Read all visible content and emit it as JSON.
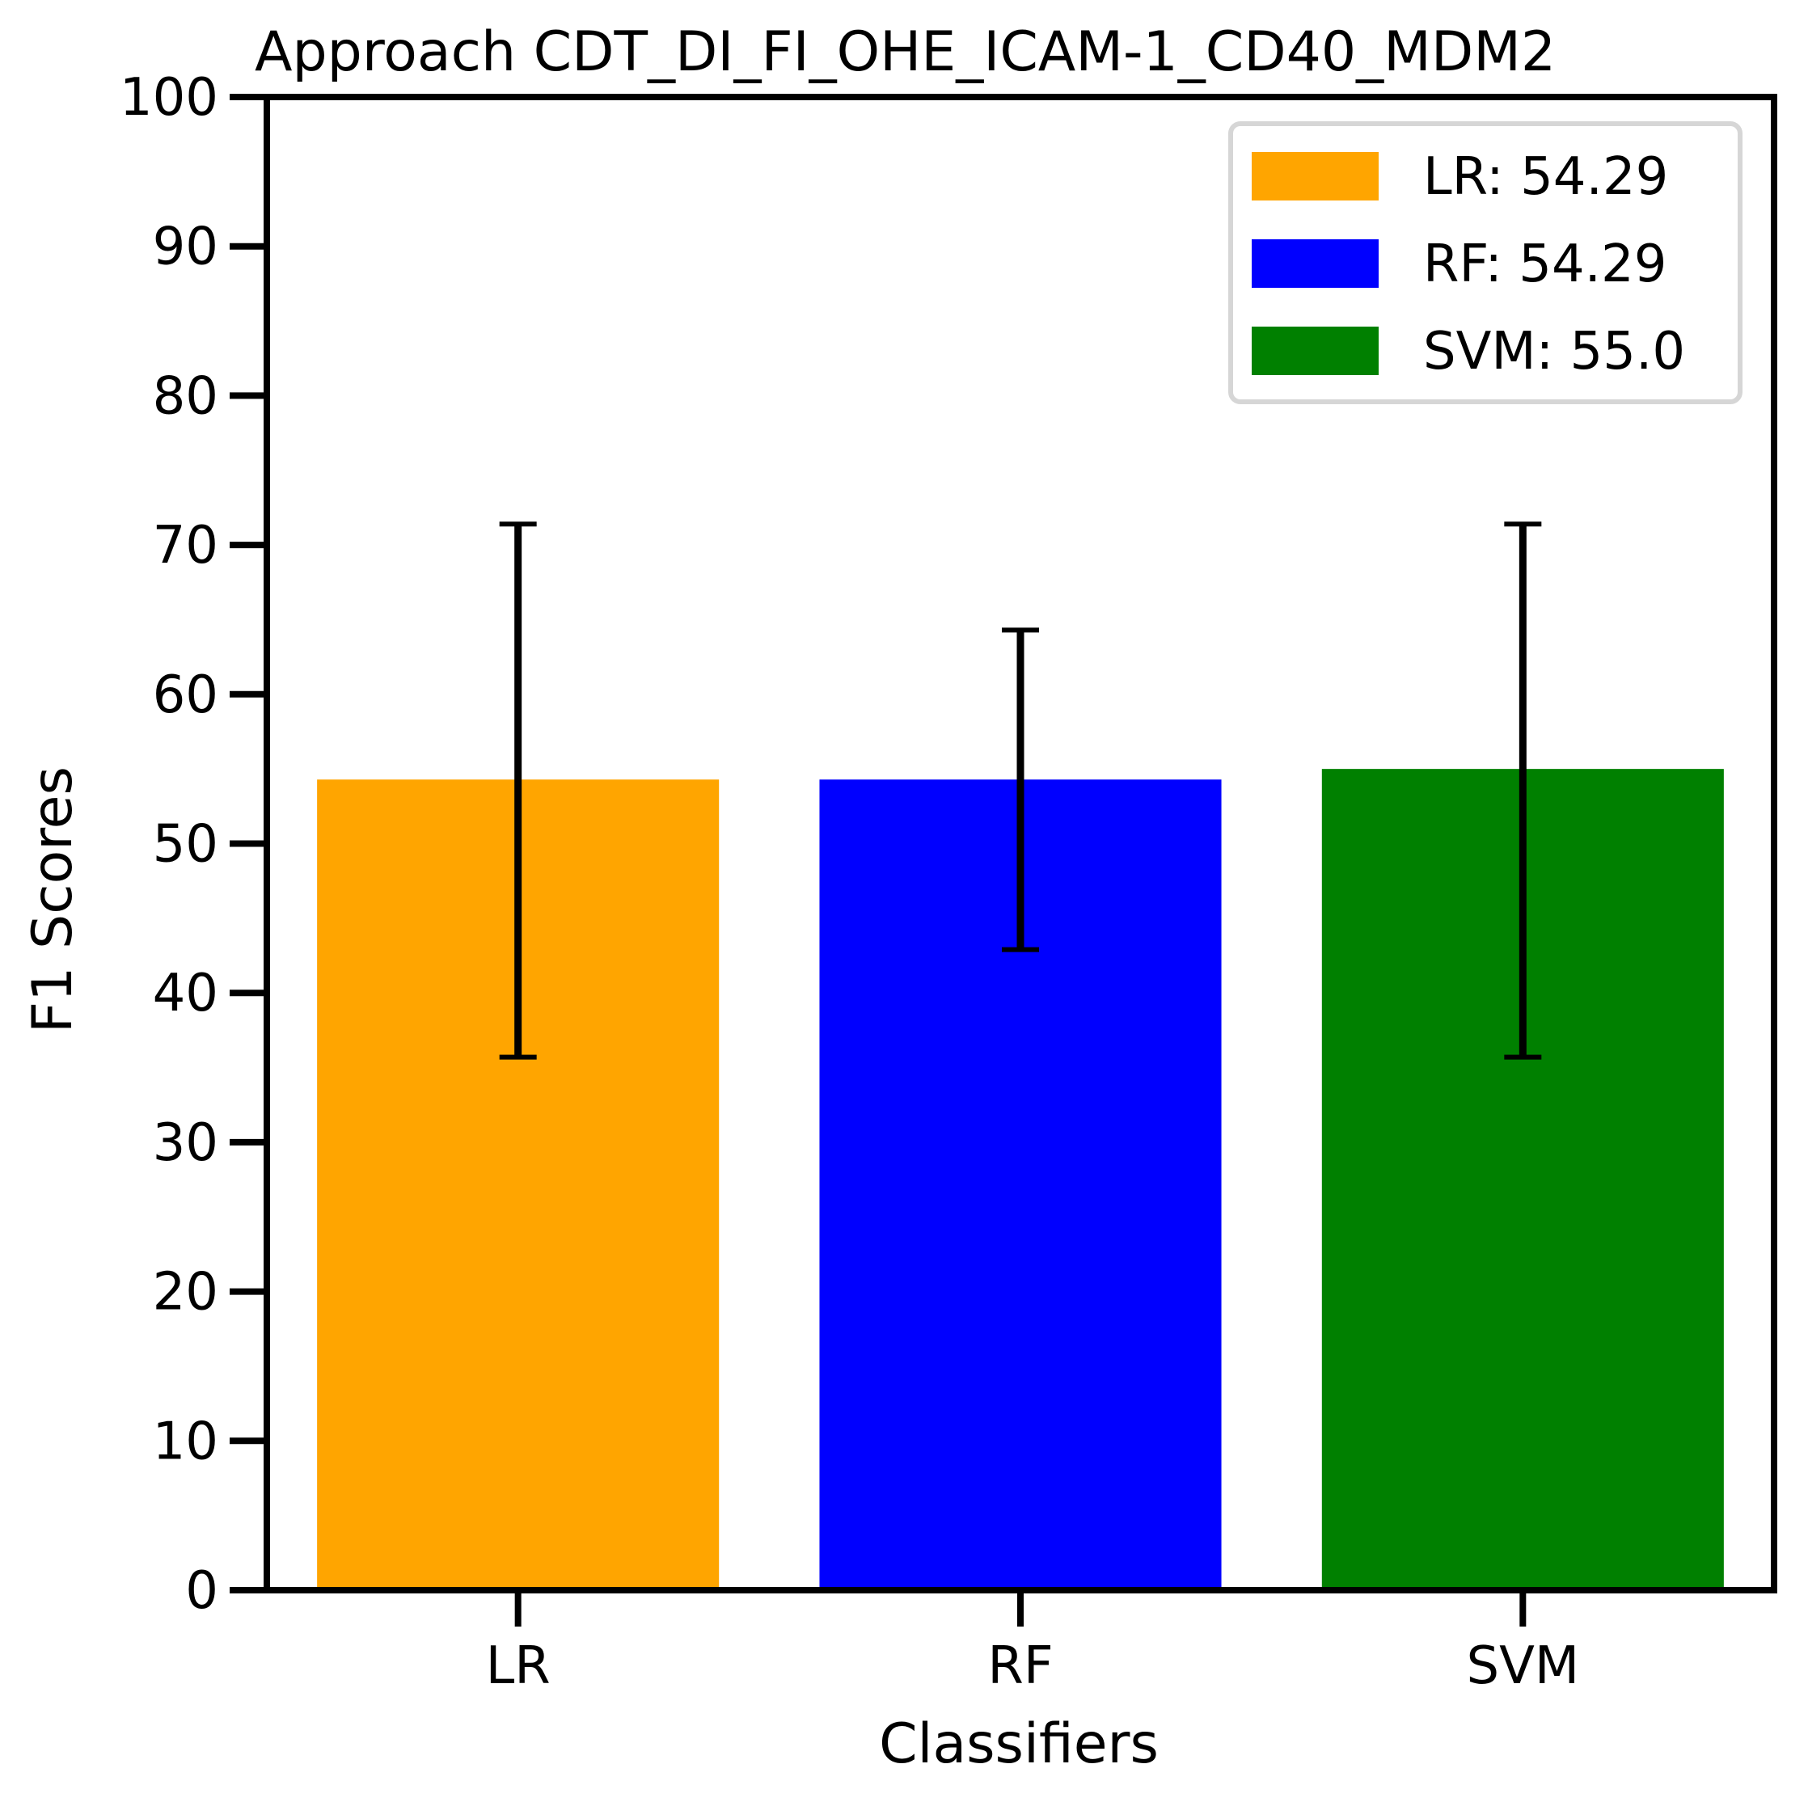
{
  "chart_data": {
    "type": "bar",
    "title": "Approach CDT_DI_FI_OHE_ICAM-1_CD40_MDM2",
    "xlabel": "Classifiers",
    "ylabel": "F1 Scores",
    "ylim": [
      0,
      100
    ],
    "yticks": [
      0,
      10,
      20,
      30,
      40,
      50,
      60,
      70,
      80,
      90,
      100
    ],
    "categories": [
      "LR",
      "RF",
      "SVM"
    ],
    "values": [
      54.29,
      54.29,
      55.0
    ],
    "error_low": [
      35.7,
      42.9,
      35.7
    ],
    "error_high": [
      71.4,
      64.3,
      71.4
    ],
    "colors": [
      "#ffa500",
      "#0000ff",
      "#008000"
    ],
    "grid": false,
    "legend": {
      "position": "top-right",
      "entries": [
        "LR: 54.29",
        "RF: 54.29",
        "SVM: 55.0"
      ]
    }
  }
}
